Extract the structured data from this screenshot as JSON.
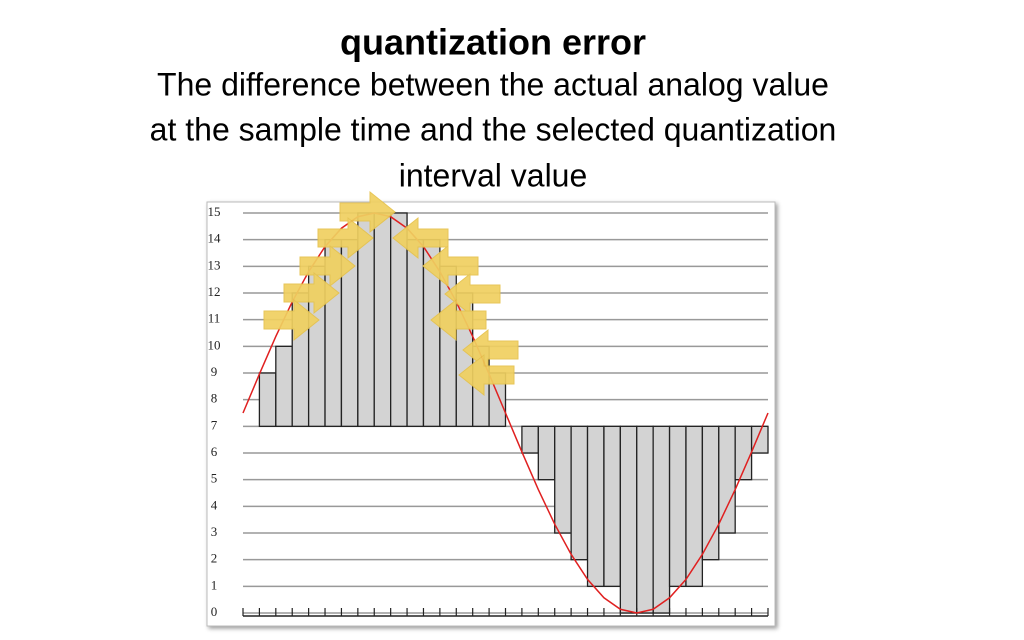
{
  "chart_data": {
    "type": "quantization",
    "title": "quantization error",
    "subtitle_lines": [
      "The difference between the actual analog value",
      "at the sample time and the selected quantization",
      "interval value"
    ],
    "quantized_values": [
      7,
      9,
      10,
      12,
      13,
      14,
      14,
      15,
      15,
      15,
      14,
      14,
      13,
      12,
      10,
      9,
      7,
      6,
      5,
      3,
      2,
      1,
      1,
      0,
      0,
      0,
      1,
      1,
      2,
      3,
      5,
      6
    ],
    "quantized_color": "#d3d3d3",
    "reference_level": 7,
    "analog_values": [
      7.5,
      8.96,
      10.37,
      11.67,
      12.8,
      13.74,
      14.43,
      14.86,
      15,
      14.86,
      14.43,
      13.74,
      12.8,
      11.67,
      10.37,
      8.96,
      7.5,
      6.04,
      4.63,
      3.33,
      2.2,
      1.26,
      0.57,
      0.14,
      0,
      0.14,
      0.57,
      1.26,
      2.2,
      3.33,
      4.63,
      6.04,
      7.5
    ],
    "analog_color": "#e02020",
    "ylim": [
      0,
      15
    ],
    "yticks": [
      0,
      1,
      2,
      3,
      4,
      5,
      6,
      7,
      8,
      9,
      10,
      11,
      12,
      13,
      14,
      15
    ],
    "grid": true
  }
}
